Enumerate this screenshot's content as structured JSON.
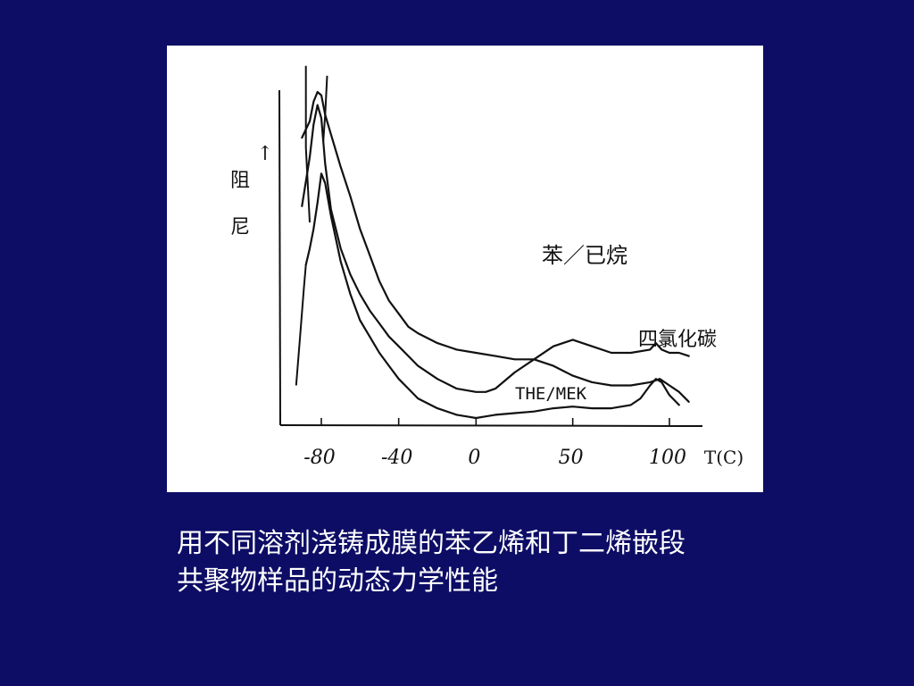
{
  "slide": {
    "background_color": "#0d0d66",
    "caption_lines": [
      "用不同溶剂浇铸成膜的苯乙烯和丁二烯嵌段",
      "共聚物样品的动态力学性能"
    ]
  },
  "chart_data": {
    "type": "line",
    "title": "",
    "xlabel": "T(C)",
    "ylabel": "阻尼",
    "ylabel_chars": [
      "阻",
      "尼"
    ],
    "ylabel_arrow": "↑",
    "x_ticks": [
      -80,
      -40,
      0,
      50,
      100
    ],
    "x_tick_labels": [
      "-80",
      "-40",
      "0",
      "50",
      "100"
    ],
    "xlim": [
      -90,
      110
    ],
    "ylim": [
      0,
      1
    ],
    "grid": false,
    "series": [
      {
        "name": "苯／已烷",
        "x": [
          -90,
          -86,
          -84,
          -82,
          -80,
          -78,
          -75,
          -70,
          -65,
          -60,
          -55,
          -50,
          -45,
          -40,
          -35,
          -30,
          -20,
          -10,
          0,
          10,
          20,
          25,
          30,
          40,
          50,
          60,
          70,
          80,
          90,
          93,
          96,
          100,
          105,
          110
        ],
        "y": [
          0.86,
          0.91,
          0.97,
          1.0,
          0.99,
          0.93,
          0.87,
          0.77,
          0.68,
          0.58,
          0.5,
          0.42,
          0.36,
          0.32,
          0.28,
          0.26,
          0.23,
          0.21,
          0.2,
          0.19,
          0.18,
          0.18,
          0.18,
          0.22,
          0.24,
          0.22,
          0.2,
          0.2,
          0.21,
          0.23,
          0.21,
          0.2,
          0.2,
          0.19
        ]
      },
      {
        "name": "四氯化碳",
        "x": [
          -90,
          -86,
          -84,
          -82,
          -80,
          -78,
          -75,
          -70,
          -65,
          -60,
          -55,
          -50,
          -45,
          -40,
          -35,
          -30,
          -20,
          -10,
          0,
          5,
          10,
          20,
          30,
          40,
          50,
          60,
          70,
          80,
          90,
          95,
          100,
          105,
          110
        ],
        "y": [
          0.65,
          0.8,
          0.9,
          0.96,
          0.92,
          0.78,
          0.64,
          0.52,
          0.44,
          0.38,
          0.33,
          0.29,
          0.25,
          0.22,
          0.19,
          0.16,
          0.12,
          0.09,
          0.08,
          0.08,
          0.09,
          0.14,
          0.18,
          0.16,
          0.13,
          0.11,
          0.1,
          0.1,
          0.11,
          0.12,
          0.1,
          0.08,
          0.05
        ]
      },
      {
        "name": "THE/MEK",
        "x": [
          -88,
          -86,
          -84,
          -82,
          -80,
          -78,
          -75,
          -70,
          -65,
          -60,
          -55,
          -50,
          -45,
          -40,
          -35,
          -30,
          -20,
          -10,
          -5,
          0,
          5,
          10,
          20,
          30,
          40,
          50,
          60,
          70,
          80,
          85,
          90,
          93,
          96,
          100,
          105
        ],
        "y": [
          0.47,
          0.52,
          0.58,
          0.66,
          0.75,
          0.72,
          0.62,
          0.48,
          0.38,
          0.3,
          0.25,
          0.2,
          0.16,
          0.12,
          0.09,
          0.06,
          0.03,
          0.01,
          0.005,
          0.0,
          0.005,
          0.01,
          0.015,
          0.02,
          0.03,
          0.035,
          0.03,
          0.03,
          0.04,
          0.06,
          0.1,
          0.12,
          0.11,
          0.07,
          0.04
        ]
      }
    ],
    "annotations": [
      {
        "text": "苯／已烷",
        "series": 0
      },
      {
        "text": "四氯化碳",
        "series": 1
      },
      {
        "text": "THE/MEK",
        "series": 2
      }
    ]
  }
}
